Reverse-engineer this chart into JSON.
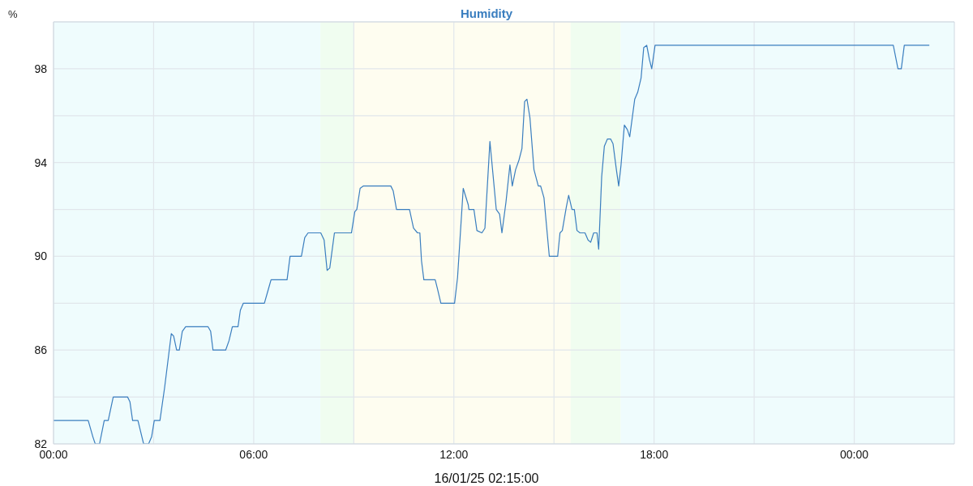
{
  "chart_data": {
    "type": "line",
    "title": "Humidity",
    "ylabel": "%",
    "xlabel": "16/01/25 02:15:00",
    "xlim": [
      0,
      27
    ],
    "xticks": [
      {
        "value": 0,
        "label": "00:00"
      },
      {
        "value": 3,
        "label": null
      },
      {
        "value": 6,
        "label": "06:00"
      },
      {
        "value": 9,
        "label": null
      },
      {
        "value": 12,
        "label": "12:00"
      },
      {
        "value": 15,
        "label": null
      },
      {
        "value": 18,
        "label": "18:00"
      },
      {
        "value": 21,
        "label": null
      },
      {
        "value": 24,
        "label": "00:00"
      }
    ],
    "ylim": [
      82,
      100
    ],
    "yticks": [
      82,
      {
        "value": 84,
        "label": null
      },
      86,
      {
        "value": 88,
        "label": null
      },
      90,
      {
        "value": 92,
        "label": null
      },
      94,
      {
        "value": 96,
        "label": null
      },
      98,
      {
        "value": 100,
        "label": null
      }
    ],
    "grid": true,
    "legend": false,
    "marker": "none",
    "line_style": "solid",
    "bands": [
      {
        "axis": "x",
        "from": 0,
        "to": 8,
        "color": "#effcfd"
      },
      {
        "axis": "x",
        "from": 8,
        "to": 9,
        "color": "#f0fdf0"
      },
      {
        "axis": "x",
        "from": 9,
        "to": 15.5,
        "color": "#fefdf0"
      },
      {
        "axis": "x",
        "from": 15.5,
        "to": 17,
        "color": "#f0fdf0"
      },
      {
        "axis": "x",
        "from": 17,
        "to": 27,
        "color": "#effcfd"
      }
    ],
    "series": [
      {
        "color": "#3a7ebf",
        "x": [
          0,
          1.04,
          1.18,
          1.25,
          1.38,
          1.52,
          1.64,
          1.79,
          2.22,
          2.29,
          2.37,
          2.53,
          2.7,
          2.85,
          2.94,
          3.02,
          3.19,
          3.33,
          3.53,
          3.6,
          3.69,
          3.77,
          3.86,
          3.96,
          4.63,
          4.71,
          4.78,
          5.16,
          5.26,
          5.36,
          5.53,
          5.6,
          5.69,
          6.32,
          6.44,
          6.52,
          7.0,
          7.09,
          7.43,
          7.53,
          7.63,
          8.01,
          8.11,
          8.2,
          8.28,
          8.42,
          8.93,
          9.03,
          9.09,
          9.19,
          9.29,
          10.11,
          10.18,
          10.28,
          10.67,
          10.79,
          10.91,
          10.98,
          11.03,
          11.1,
          11.44,
          11.51,
          11.61,
          12.02,
          12.11,
          12.28,
          12.43,
          12.45,
          12.6,
          12.69,
          12.84,
          12.93,
          13.08,
          13.27,
          13.37,
          13.44,
          13.56,
          13.68,
          13.75,
          13.85,
          13.95,
          14.04,
          14.12,
          14.19,
          14.28,
          14.4,
          14.53,
          14.6,
          14.7,
          14.86,
          15.11,
          15.18,
          15.25,
          15.37,
          15.44,
          15.54,
          15.61,
          15.69,
          15.78,
          15.93,
          16.02,
          16.1,
          16.19,
          16.29,
          16.34,
          16.43,
          16.51,
          16.6,
          16.7,
          16.77,
          16.87,
          16.94,
          17.01,
          17.11,
          17.2,
          17.27,
          17.42,
          17.51,
          17.61,
          17.69,
          17.78,
          17.86,
          17.93,
          18.03,
          25.17,
          25.31,
          25.41,
          25.5,
          26.25
        ],
        "values": [
          83,
          83,
          82.3,
          82,
          82,
          83,
          83,
          84,
          84,
          83.8,
          83,
          83,
          82,
          82,
          82.3,
          83,
          83,
          84.4,
          86.7,
          86.6,
          86,
          86,
          86.8,
          87,
          87,
          86.8,
          86,
          86,
          86.4,
          87,
          87,
          87.7,
          88,
          88,
          88.6,
          89,
          89,
          90,
          90,
          90.8,
          91,
          91,
          90.7,
          89.4,
          89.5,
          91,
          91,
          91.9,
          92,
          92.9,
          93,
          93,
          92.8,
          92,
          92,
          91.2,
          91,
          91,
          89.8,
          89,
          89,
          88.6,
          88,
          88,
          89.1,
          92.9,
          92.2,
          92,
          92,
          91.1,
          91,
          91.2,
          94.9,
          92,
          91.8,
          91,
          92.3,
          93.9,
          93,
          93.7,
          94.1,
          94.6,
          96.6,
          96.7,
          95.9,
          93.7,
          93,
          93,
          92.5,
          90,
          90,
          91,
          91.1,
          92.1,
          92.6,
          92,
          92,
          91.1,
          91,
          91,
          90.7,
          90.6,
          91,
          91,
          90.3,
          93.4,
          94.7,
          95,
          95,
          94.8,
          93.7,
          93,
          93.9,
          95.6,
          95.4,
          95.1,
          96.7,
          97,
          97.6,
          98.9,
          99,
          98.4,
          98,
          99,
          99,
          98,
          98,
          99,
          99
        ]
      }
    ]
  }
}
